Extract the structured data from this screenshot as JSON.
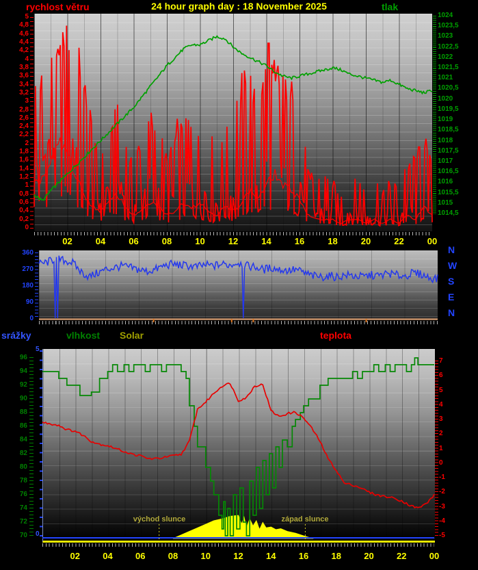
{
  "header": {
    "left_label": "rychlost větru",
    "title": "24 hour graph day : 18 November 2025",
    "right_label": "tlak"
  },
  "legend_row": {
    "rain": "srážky",
    "humidity": "vlhkost",
    "solar": "Solar",
    "temperature": "teplota"
  },
  "colors": {
    "background": "#000000",
    "title": "#ffff00",
    "wind": "#ff0000",
    "pressure": "#00a000",
    "direction": "#2438ee",
    "rain": "#3355ff",
    "humidity": "#058805",
    "solar": "#ffff00",
    "solar_label": "#a0a000",
    "temperature": "#e80000",
    "hour_labels": "#ffff00",
    "sun_annotations": "#b0a83a",
    "direction_baseline": "#e0a070"
  },
  "chart_data": [
    {
      "id": "wind-speed-and-pressure",
      "type": "line",
      "x_range_hours": [
        0,
        24
      ],
      "x_tick_labels": [
        "02",
        "04",
        "06",
        "08",
        "10",
        "12",
        "14",
        "16",
        "18",
        "20",
        "22",
        "00"
      ],
      "left_axis": {
        "title": "rychlost větru",
        "color": "#ff0000",
        "range": [
          0,
          5
        ],
        "tick_labels": [
          "5",
          "4,8",
          "4,6",
          "4,4",
          "4,2",
          "4",
          "3,8",
          "3,6",
          "3,4",
          "3,2",
          "3",
          "2,8",
          "2,6",
          "2,4",
          "2,2",
          "2",
          "1,8",
          "1,6",
          "1,4",
          "1,2",
          "1",
          "0,8",
          "0,6",
          "0,4",
          "0,2",
          "0"
        ]
      },
      "right_axis": {
        "title": "tlak",
        "color": "#00a000",
        "range": [
          1014.5,
          1024
        ],
        "tick_labels": [
          "1024",
          "1023,5",
          "1023",
          "1022,5",
          "1022",
          "1021,5",
          "1021",
          "1020,5",
          "1020",
          "1019,5",
          "1019",
          "1018,5",
          "1018",
          "1017,5",
          "1017",
          "1016,5",
          "1016",
          "1015,5",
          "1015",
          "1014,5"
        ]
      },
      "series": [
        {
          "name": "wind speed average",
          "color": "#ff0000",
          "axis": "left",
          "t_step_hours": 0.5,
          "values": [
            1.0,
            1.2,
            1.5,
            2.0,
            1.8,
            1.2,
            0.8,
            0.5,
            0.4,
            0.6,
            0.8,
            0.5,
            0.3,
            0.4,
            0.6,
            0.5,
            0.3,
            0.4,
            0.6,
            0.5,
            0.6,
            0.4,
            0.3,
            0.5,
            0.4,
            0.6,
            0.9,
            0.7,
            1.0,
            1.3,
            1.0,
            0.9,
            0.7,
            0.3,
            0.2,
            0.2,
            0.2,
            0.1,
            0.2,
            0.2,
            0.1,
            0.2,
            0.1,
            0.2,
            0.1,
            0.3,
            0.2,
            0.5,
            0.3
          ]
        },
        {
          "name": "wind speed gusts",
          "color": "#ff0000",
          "axis": "left",
          "t_step_hours": 0.5,
          "values": [
            3.4,
            3.7,
            4.3,
            4.6,
            5.0,
            4.9,
            3.9,
            2.6,
            1.7,
            2.4,
            3.0,
            2.1,
            1.6,
            2.4,
            2.9,
            2.5,
            1.8,
            2.5,
            2.9,
            2.6,
            2.4,
            2.6,
            1.9,
            2.6,
            2.4,
            3.8,
            4.0,
            2.9,
            4.7,
            4.0,
            3.8,
            3.5,
            3.2,
            1.4,
            1.2,
            1.4,
            1.2,
            0.9,
            1.4,
            1.2,
            1.0,
            1.3,
            0.9,
            1.2,
            1.0,
            1.6,
            1.8,
            2.4,
            1.9
          ]
        },
        {
          "name": "pressure hPa",
          "color": "#00a000",
          "axis": "right",
          "t_step_hours": 0.5,
          "values": [
            1015.4,
            1015.1,
            1015.6,
            1016.0,
            1016.4,
            1016.8,
            1017.2,
            1017.6,
            1018.0,
            1018.4,
            1018.8,
            1019.2,
            1019.6,
            1020.1,
            1020.6,
            1021.1,
            1021.6,
            1022.0,
            1022.4,
            1022.6,
            1022.6,
            1022.8,
            1023.0,
            1022.9,
            1022.5,
            1022.2,
            1022.0,
            1021.8,
            1021.6,
            1021.3,
            1021.1,
            1021.0,
            1021.1,
            1021.2,
            1021.3,
            1021.4,
            1021.5,
            1021.4,
            1021.2,
            1021.1,
            1021.0,
            1020.9,
            1020.8,
            1020.9,
            1020.7,
            1020.5,
            1020.4,
            1020.3,
            1020.4
          ]
        }
      ]
    },
    {
      "id": "wind-direction",
      "type": "line",
      "x_range_hours": [
        0,
        24
      ],
      "left_axis": {
        "color": "#2244ff",
        "range": [
          0,
          360
        ],
        "tick_labels": [
          "360",
          "270",
          "180",
          "90",
          "0"
        ]
      },
      "right_axis": {
        "compass_labels": [
          "N",
          "W",
          "S",
          "E",
          "N"
        ]
      },
      "series": [
        {
          "name": "wind direction degrees",
          "color": "#2438ee",
          "t_step_hours": 0.5,
          "values": [
            300,
            310,
            330,
            320,
            310,
            260,
            230,
            250,
            270,
            280,
            290,
            280,
            270,
            260,
            270,
            290,
            300,
            295,
            290,
            285,
            295,
            290,
            300,
            295,
            310,
            290,
            285,
            270,
            280,
            270,
            265,
            270,
            250,
            235,
            230,
            235,
            230,
            240,
            235,
            230,
            240,
            235,
            250,
            240,
            235,
            250,
            245,
            225,
            220
          ],
          "spike_drop_hours": [
            0.95,
            1.15,
            12.3
          ]
        }
      ],
      "baseline": {
        "color": "#e0a070",
        "tick_color": "#e07820",
        "tick_hours": [
          6.9,
          11.6,
          12.9,
          19.7
        ]
      }
    },
    {
      "id": "humidity-solar-temperature-rain",
      "type": "line",
      "x_range_hours": [
        0,
        24
      ],
      "x_tick_labels": [
        "02",
        "04",
        "06",
        "08",
        "10",
        "12",
        "14",
        "16",
        "18",
        "20",
        "22",
        "00"
      ],
      "left_axis": {
        "title": "vlhkost",
        "color": "#008000",
        "range": [
          70,
          96
        ],
        "tick_labels": [
          "96",
          "94",
          "92",
          "90",
          "88",
          "86",
          "84",
          "82",
          "80",
          "78",
          "76",
          "74",
          "72",
          "70"
        ]
      },
      "inner_left_axis": {
        "title": "srážky",
        "color": "#3355ff",
        "range": [
          0,
          5
        ],
        "tick_labels": [
          "5",
          "0"
        ]
      },
      "right_axis": {
        "title": "teplota",
        "color": "#ff0000",
        "range": [
          -5,
          7
        ],
        "tick_labels": [
          "7",
          "6",
          "5",
          "4",
          "3",
          "2",
          "1",
          "0",
          "-1",
          "-2",
          "-3",
          "-4",
          "-5"
        ]
      },
      "series": [
        {
          "name": "humidity percent",
          "color": "#058805",
          "style": "step",
          "points": [
            [
              0,
              94
            ],
            [
              0.5,
              94
            ],
            [
              1,
              93
            ],
            [
              1.5,
              92
            ],
            [
              2,
              92
            ],
            [
              2.3,
              90.5
            ],
            [
              2.8,
              90.5
            ],
            [
              3,
              91
            ],
            [
              3.5,
              93
            ],
            [
              4,
              94
            ],
            [
              4.3,
              95
            ],
            [
              4.6,
              94
            ],
            [
              5,
              95
            ],
            [
              5.3,
              94
            ],
            [
              5.6,
              95
            ],
            [
              6,
              95
            ],
            [
              6.3,
              94
            ],
            [
              6.6,
              95
            ],
            [
              7,
              95
            ],
            [
              7.3,
              94
            ],
            [
              7.6,
              95
            ],
            [
              8,
              95
            ],
            [
              8.5,
              94
            ],
            [
              8.8,
              93
            ],
            [
              9,
              89
            ],
            [
              9.3,
              86
            ],
            [
              9.5,
              83
            ],
            [
              10,
              80
            ],
            [
              10.3,
              78
            ],
            [
              10.5,
              76
            ],
            [
              10.8,
              73
            ],
            [
              11,
              71
            ],
            [
              11.1,
              75
            ],
            [
              11.2,
              70
            ],
            [
              11.35,
              74
            ],
            [
              11.5,
              70
            ],
            [
              11.7,
              76
            ],
            [
              11.9,
              71
            ],
            [
              12.1,
              77
            ],
            [
              12.3,
              72
            ],
            [
              12.5,
              70
            ],
            [
              12.7,
              78
            ],
            [
              12.9,
              73
            ],
            [
              13.1,
              80
            ],
            [
              13.3,
              74
            ],
            [
              13.5,
              81
            ],
            [
              13.7,
              76
            ],
            [
              13.9,
              82
            ],
            [
              14.1,
              77
            ],
            [
              14.3,
              83
            ],
            [
              14.5,
              80
            ],
            [
              14.7,
              84
            ],
            [
              15,
              83
            ],
            [
              15.3,
              86
            ],
            [
              15.5,
              87
            ],
            [
              15.8,
              88
            ],
            [
              16,
              89
            ],
            [
              16.3,
              90
            ],
            [
              16.5,
              90
            ],
            [
              17,
              92
            ],
            [
              17.5,
              93
            ],
            [
              18,
              93
            ],
            [
              18.5,
              93
            ],
            [
              19,
              94
            ],
            [
              19.3,
              93
            ],
            [
              19.6,
              94
            ],
            [
              20,
              94
            ],
            [
              20.3,
              95
            ],
            [
              20.6,
              94
            ],
            [
              21,
              95
            ],
            [
              21.3,
              94
            ],
            [
              21.6,
              95
            ],
            [
              22,
              95
            ],
            [
              22.3,
              94
            ],
            [
              22.6,
              95
            ],
            [
              22.8,
              96
            ],
            [
              23,
              95
            ],
            [
              23.3,
              95
            ],
            [
              23.6,
              95
            ],
            [
              24,
              95
            ]
          ]
        },
        {
          "name": "temperature C",
          "color": "#e80000",
          "t_step_hours": 0.5,
          "values": [
            2.8,
            2.7,
            2.6,
            2.3,
            2.2,
            1.9,
            1.5,
            1.3,
            1.2,
            1.0,
            0.8,
            0.6,
            0.5,
            0.3,
            0.3,
            0.4,
            0.5,
            0.6,
            1.5,
            3.7,
            4.2,
            4.8,
            5.3,
            5.5,
            4.3,
            4.5,
            5.3,
            5.4,
            3.6,
            3.2,
            3.4,
            3.5,
            3.1,
            2.4,
            1.5,
            0.3,
            -0.5,
            -1.4,
            -1.5,
            -1.7,
            -2.0,
            -2.2,
            -2.3,
            -2.4,
            -2.6,
            -2.9,
            -3.1,
            -2.8,
            -2.2
          ]
        },
        {
          "name": "solar relative",
          "color": "#ffff00",
          "fill": true,
          "points": [
            [
              8,
              0
            ],
            [
              8.5,
              2
            ],
            [
              9,
              4
            ],
            [
              9.5,
              6
            ],
            [
              10,
              8
            ],
            [
              10.5,
              10
            ],
            [
              11,
              11
            ],
            [
              11.5,
              12.5
            ],
            [
              12,
              13
            ],
            [
              12.2,
              8
            ],
            [
              12.35,
              12
            ],
            [
              12.5,
              6
            ],
            [
              12.7,
              11
            ],
            [
              12.9,
              7
            ],
            [
              13.1,
              10
            ],
            [
              13.3,
              5
            ],
            [
              13.5,
              9
            ],
            [
              13.7,
              6
            ],
            [
              14,
              6.5
            ],
            [
              14.3,
              5
            ],
            [
              14.6,
              5.5
            ],
            [
              15,
              4
            ],
            [
              15.5,
              3
            ],
            [
              16,
              1.5
            ],
            [
              16.3,
              0.7
            ],
            [
              16.6,
              0
            ]
          ]
        },
        {
          "name": "rain mm",
          "color": "#2244ff",
          "constant_value": 0
        }
      ],
      "annotations": {
        "sunrise": {
          "label": "východ slunce",
          "hour": 7.15
        },
        "sunset": {
          "label": "západ slunce",
          "hour": 16.1
        }
      }
    }
  ]
}
